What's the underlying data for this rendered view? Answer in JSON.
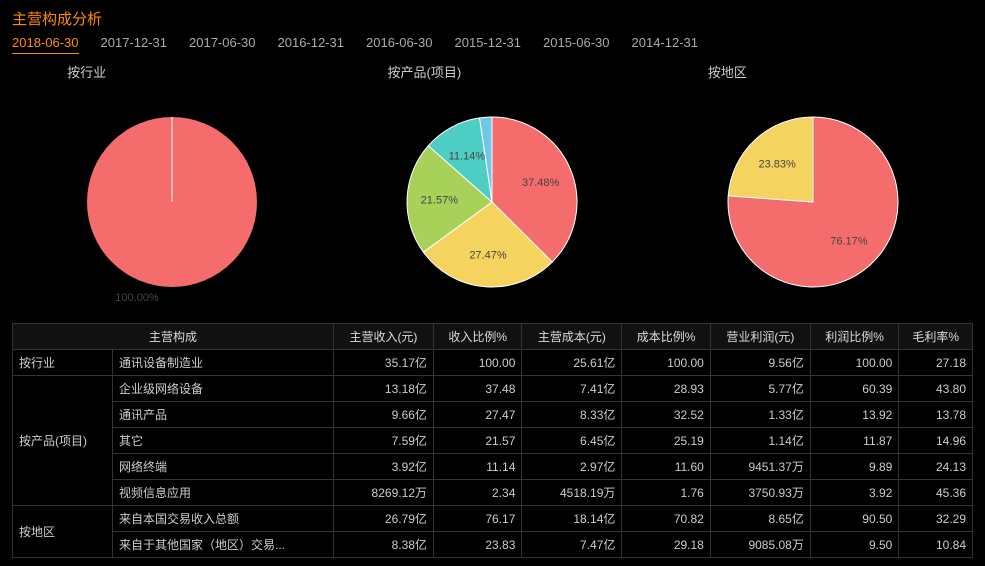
{
  "title": "主营构成分析",
  "tabs": [
    "2018-06-30",
    "2017-12-31",
    "2017-06-30",
    "2016-12-31",
    "2016-06-30",
    "2015-12-31",
    "2015-06-30",
    "2014-12-31"
  ],
  "active_tab_index": 0,
  "chart_background": "#000000",
  "charts": [
    {
      "title": "按行业",
      "type": "pie",
      "radius": 85,
      "slices": [
        {
          "label": "100.00%",
          "value": 100.0,
          "color": "#f56c6c",
          "label_outside": true
        }
      ]
    },
    {
      "title": "按产品(项目)",
      "type": "pie",
      "radius": 85,
      "slices": [
        {
          "label": "37.48%",
          "value": 37.48,
          "color": "#f56c6c"
        },
        {
          "label": "27.47%",
          "value": 27.47,
          "color": "#f4d35e"
        },
        {
          "label": "21.57%",
          "value": 21.57,
          "color": "#a8d15a"
        },
        {
          "label": "11.14%",
          "value": 11.14,
          "color": "#4ecdc4"
        },
        {
          "label": "",
          "value": 2.34,
          "color": "#6fc7e8"
        }
      ]
    },
    {
      "title": "按地区",
      "type": "pie",
      "radius": 85,
      "slices": [
        {
          "label": "76.17%",
          "value": 76.17,
          "color": "#f56c6c"
        },
        {
          "label": "23.83%",
          "value": 23.83,
          "color": "#f4d35e"
        }
      ]
    }
  ],
  "table": {
    "columns": [
      "主营构成",
      "主营收入(元)",
      "收入比例%",
      "主营成本(元)",
      "成本比例%",
      "营业利润(元)",
      "利润比例%",
      "毛利率%"
    ],
    "groups": [
      {
        "group": "按行业",
        "rows": [
          {
            "name": "通讯设备制造业",
            "income": "35.17亿",
            "income_pct": "100.00",
            "cost": "25.61亿",
            "cost_pct": "100.00",
            "profit": "9.56亿",
            "profit_pct": "100.00",
            "margin": "27.18"
          }
        ]
      },
      {
        "group": "按产品(项目)",
        "rows": [
          {
            "name": "企业级网络设备",
            "income": "13.18亿",
            "income_pct": "37.48",
            "cost": "7.41亿",
            "cost_pct": "28.93",
            "profit": "5.77亿",
            "profit_pct": "60.39",
            "margin": "43.80"
          },
          {
            "name": "通讯产品",
            "income": "9.66亿",
            "income_pct": "27.47",
            "cost": "8.33亿",
            "cost_pct": "32.52",
            "profit": "1.33亿",
            "profit_pct": "13.92",
            "margin": "13.78"
          },
          {
            "name": "其它",
            "income": "7.59亿",
            "income_pct": "21.57",
            "cost": "6.45亿",
            "cost_pct": "25.19",
            "profit": "1.14亿",
            "profit_pct": "11.87",
            "margin": "14.96"
          },
          {
            "name": "网络终端",
            "income": "3.92亿",
            "income_pct": "11.14",
            "cost": "2.97亿",
            "cost_pct": "11.60",
            "profit": "9451.37万",
            "profit_pct": "9.89",
            "margin": "24.13"
          },
          {
            "name": "视频信息应用",
            "income": "8269.12万",
            "income_pct": "2.34",
            "cost": "4518.19万",
            "cost_pct": "1.76",
            "profit": "3750.93万",
            "profit_pct": "3.92",
            "margin": "45.36"
          }
        ]
      },
      {
        "group": "按地区",
        "rows": [
          {
            "name": "来自本国交易收入总额",
            "income": "26.79亿",
            "income_pct": "76.17",
            "cost": "18.14亿",
            "cost_pct": "70.82",
            "profit": "8.65亿",
            "profit_pct": "90.50",
            "margin": "32.29"
          },
          {
            "name": "来自于其他国家（地区）交易...",
            "income": "8.38亿",
            "income_pct": "23.83",
            "cost": "7.47亿",
            "cost_pct": "29.18",
            "profit": "9085.08万",
            "profit_pct": "9.50",
            "margin": "10.84"
          }
        ]
      }
    ]
  }
}
